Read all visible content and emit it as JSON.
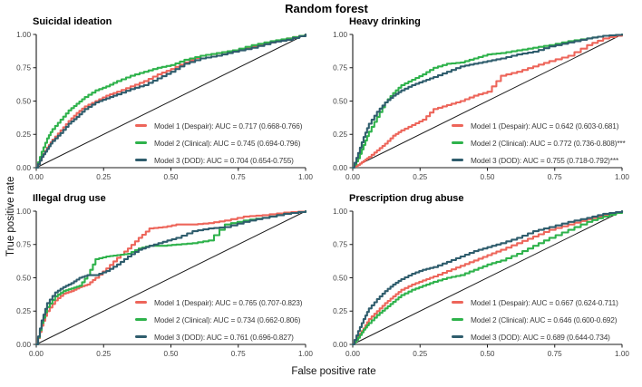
{
  "figure": {
    "title": "Random forest",
    "xlabel": "False positive rate",
    "ylabel": "True positive rate"
  },
  "colors": {
    "model1": "#ed655a",
    "model2": "#2eb24b",
    "model3": "#2f5d6d",
    "reference_line": "#1b1b1b",
    "axis": "#1b1b1b",
    "tick_label": "#444444",
    "legend_text": "#3a3a3a"
  },
  "axis": {
    "tick_values": [
      0,
      0.25,
      0.5,
      0.75,
      1
    ],
    "tick_labels": [
      "0.00",
      "0.25",
      "0.50",
      "0.75",
      "1.00"
    ],
    "xlim": [
      0,
      1
    ],
    "ylim": [
      0,
      1
    ],
    "grid": false
  },
  "chart_data": [
    {
      "type": "line",
      "subtype": "roc-curve",
      "title": "Suicidal ideation",
      "xlabel": "False positive rate",
      "ylabel": "True positive rate",
      "xlim": [
        0,
        1
      ],
      "ylim": [
        0,
        1
      ],
      "legend_position": "lower right",
      "reference_line": {
        "from": [
          0,
          0
        ],
        "to": [
          1,
          1
        ]
      },
      "x": [
        0,
        0.02,
        0.04,
        0.06,
        0.09,
        0.12,
        0.15,
        0.18,
        0.22,
        0.26,
        0.3,
        0.35,
        0.4,
        0.45,
        0.5,
        0.55,
        0.61,
        0.67,
        0.73,
        0.8,
        0.87,
        0.93,
        1
      ],
      "series": [
        {
          "name": "Model 1 (Despair)",
          "auc": 0.717,
          "ci": "0.668-0.766",
          "significance": "",
          "label": "Model 1 (Despair): AUC = 0.717 (0.668-0.766)",
          "color_key": "model1",
          "y": [
            0,
            0.08,
            0.15,
            0.21,
            0.28,
            0.35,
            0.41,
            0.46,
            0.5,
            0.54,
            0.57,
            0.61,
            0.65,
            0.7,
            0.74,
            0.79,
            0.84,
            0.86,
            0.88,
            0.91,
            0.94,
            0.97,
            1
          ]
        },
        {
          "name": "Model 2 (Clinical)",
          "auc": 0.745,
          "ci": "0.694-0.796",
          "significance": "",
          "label": "Model 2 (Clinical): AUC = 0.745 (0.694-0.796)",
          "color_key": "model2",
          "y": [
            0,
            0.12,
            0.22,
            0.29,
            0.36,
            0.43,
            0.48,
            0.53,
            0.58,
            0.61,
            0.65,
            0.69,
            0.72,
            0.75,
            0.77,
            0.81,
            0.84,
            0.86,
            0.88,
            0.92,
            0.95,
            0.97,
            1
          ]
        },
        {
          "name": "Model 3 (DOD)",
          "auc": 0.704,
          "ci": "0.654-0.755",
          "significance": "",
          "label": "Model 3 (DOD): AUC = 0.704 (0.654-0.755)",
          "color_key": "model3",
          "y": [
            0,
            0.08,
            0.14,
            0.2,
            0.26,
            0.33,
            0.38,
            0.44,
            0.49,
            0.52,
            0.55,
            0.59,
            0.62,
            0.67,
            0.72,
            0.78,
            0.82,
            0.84,
            0.87,
            0.9,
            0.94,
            0.96,
            1
          ]
        }
      ]
    },
    {
      "type": "line",
      "subtype": "roc-curve",
      "title": "Heavy drinking",
      "xlabel": "False positive rate",
      "ylabel": "True positive rate",
      "xlim": [
        0,
        1
      ],
      "ylim": [
        0,
        1
      ],
      "legend_position": "lower right",
      "reference_line": {
        "from": [
          0,
          0
        ],
        "to": [
          1,
          1
        ]
      },
      "x": [
        0,
        0.02,
        0.04,
        0.06,
        0.09,
        0.12,
        0.15,
        0.18,
        0.22,
        0.26,
        0.3,
        0.35,
        0.4,
        0.45,
        0.5,
        0.55,
        0.61,
        0.67,
        0.73,
        0.8,
        0.87,
        0.93,
        1
      ],
      "series": [
        {
          "name": "Model 1 (Despair)",
          "auc": 0.642,
          "ci": "0.603-0.681",
          "significance": "",
          "label": "Model 1 (Despair): AUC = 0.642 (0.603-0.681)",
          "color_key": "model1",
          "y": [
            0,
            0.02,
            0.05,
            0.08,
            0.13,
            0.18,
            0.24,
            0.28,
            0.32,
            0.36,
            0.44,
            0.47,
            0.5,
            0.54,
            0.57,
            0.69,
            0.72,
            0.76,
            0.8,
            0.84,
            0.92,
            0.97,
            1
          ]
        },
        {
          "name": "Model 2 (Clinical)",
          "auc": 0.772,
          "ci": "0.736-0.808",
          "significance": "***",
          "label": "Model 2 (Clinical): AUC = 0.772 (0.736-0.808)***",
          "color_key": "model2",
          "y": [
            0,
            0.07,
            0.17,
            0.27,
            0.38,
            0.49,
            0.56,
            0.62,
            0.66,
            0.7,
            0.75,
            0.78,
            0.79,
            0.82,
            0.85,
            0.86,
            0.88,
            0.9,
            0.92,
            0.95,
            0.97,
            0.99,
            1
          ]
        },
        {
          "name": "Model 3 (DOD)",
          "auc": 0.755,
          "ci": "0.718-0.792",
          "significance": "***",
          "label": "Model 3 (DOD): AUC = 0.755 (0.718-0.792)***",
          "color_key": "model3",
          "y": [
            0,
            0.11,
            0.23,
            0.33,
            0.42,
            0.49,
            0.54,
            0.58,
            0.62,
            0.65,
            0.68,
            0.72,
            0.76,
            0.78,
            0.8,
            0.82,
            0.85,
            0.87,
            0.91,
            0.94,
            0.97,
            0.99,
            1
          ]
        }
      ]
    },
    {
      "type": "line",
      "subtype": "roc-curve",
      "title": "Illegal drug use",
      "xlabel": "False positive rate",
      "ylabel": "True positive rate",
      "xlim": [
        0,
        1
      ],
      "ylim": [
        0,
        1
      ],
      "legend_position": "lower right",
      "reference_line": {
        "from": [
          0,
          0
        ],
        "to": [
          1,
          1
        ]
      },
      "x": [
        0,
        0.02,
        0.04,
        0.07,
        0.1,
        0.13,
        0.16,
        0.19,
        0.22,
        0.26,
        0.3,
        0.34,
        0.38,
        0.42,
        0.47,
        0.52,
        0.58,
        0.64,
        0.7,
        0.77,
        0.84,
        0.92,
        1
      ],
      "series": [
        {
          "name": "Model 1 (Despair)",
          "auc": 0.765,
          "ci": "0.707-0.823",
          "significance": "",
          "label": "Model 1 (Despair): AUC = 0.765 (0.707-0.823)",
          "color_key": "model1",
          "y": [
            0,
            0.14,
            0.25,
            0.33,
            0.38,
            0.4,
            0.43,
            0.45,
            0.5,
            0.57,
            0.65,
            0.72,
            0.8,
            0.87,
            0.88,
            0.9,
            0.9,
            0.91,
            0.93,
            0.96,
            0.97,
            0.99,
            1
          ]
        },
        {
          "name": "Model 2 (Clinical)",
          "auc": 0.734,
          "ci": "0.662-0.806",
          "significance": "",
          "label": "Model 2 (Clinical): AUC = 0.734 (0.662-0.806)",
          "color_key": "model2",
          "y": [
            0,
            0.16,
            0.28,
            0.36,
            0.4,
            0.42,
            0.44,
            0.52,
            0.64,
            0.66,
            0.67,
            0.68,
            0.72,
            0.74,
            0.74,
            0.75,
            0.76,
            0.78,
            0.9,
            0.93,
            0.95,
            0.98,
            1
          ]
        },
        {
          "name": "Model 3 (DOD)",
          "auc": 0.761,
          "ci": "0.696-0.827",
          "significance": "",
          "label": "Model 3 (DOD): AUC = 0.761 (0.696-0.827)",
          "color_key": "model3",
          "y": [
            0,
            0.18,
            0.31,
            0.39,
            0.43,
            0.46,
            0.5,
            0.52,
            0.52,
            0.55,
            0.6,
            0.66,
            0.71,
            0.74,
            0.77,
            0.8,
            0.85,
            0.87,
            0.88,
            0.92,
            0.95,
            0.98,
            1
          ]
        }
      ]
    },
    {
      "type": "line",
      "subtype": "roc-curve",
      "title": "Prescription drug abuse",
      "xlabel": "False positive rate",
      "ylabel": "True positive rate",
      "xlim": [
        0,
        1
      ],
      "ylim": [
        0,
        1
      ],
      "legend_position": "lower right",
      "reference_line": {
        "from": [
          0,
          0
        ],
        "to": [
          1,
          1
        ]
      },
      "x": [
        0,
        0.02,
        0.04,
        0.06,
        0.09,
        0.12,
        0.15,
        0.18,
        0.22,
        0.26,
        0.3,
        0.35,
        0.4,
        0.45,
        0.5,
        0.55,
        0.61,
        0.67,
        0.73,
        0.8,
        0.87,
        0.93,
        1
      ],
      "series": [
        {
          "name": "Model 1 (Despair)",
          "auc": 0.667,
          "ci": "0.624-0.711",
          "significance": "",
          "label": "Model 1 (Despair): AUC = 0.667 (0.624-0.711)",
          "color_key": "model1",
          "y": [
            0,
            0.06,
            0.12,
            0.19,
            0.25,
            0.31,
            0.36,
            0.41,
            0.45,
            0.48,
            0.51,
            0.55,
            0.59,
            0.63,
            0.67,
            0.71,
            0.76,
            0.81,
            0.86,
            0.9,
            0.94,
            0.97,
            1
          ]
        },
        {
          "name": "Model 2 (Clinical)",
          "auc": 0.646,
          "ci": "0.600-0.692",
          "significance": "",
          "label": "Model 2 (Clinical): AUC = 0.646 (0.600-0.692)",
          "color_key": "model2",
          "y": [
            0,
            0.05,
            0.11,
            0.16,
            0.22,
            0.27,
            0.32,
            0.37,
            0.41,
            0.44,
            0.47,
            0.5,
            0.52,
            0.56,
            0.6,
            0.63,
            0.68,
            0.74,
            0.8,
            0.86,
            0.92,
            0.96,
            1
          ]
        },
        {
          "name": "Model 3 (DOD)",
          "auc": 0.689,
          "ci": "0.644-0.734",
          "significance": "",
          "label": "Model 3 (DOD): AUC = 0.689 (0.644-0.734)",
          "color_key": "model3",
          "y": [
            0,
            0.1,
            0.19,
            0.27,
            0.34,
            0.4,
            0.45,
            0.49,
            0.53,
            0.56,
            0.58,
            0.62,
            0.66,
            0.7,
            0.73,
            0.76,
            0.8,
            0.85,
            0.88,
            0.92,
            0.95,
            0.98,
            1
          ]
        }
      ]
    }
  ]
}
